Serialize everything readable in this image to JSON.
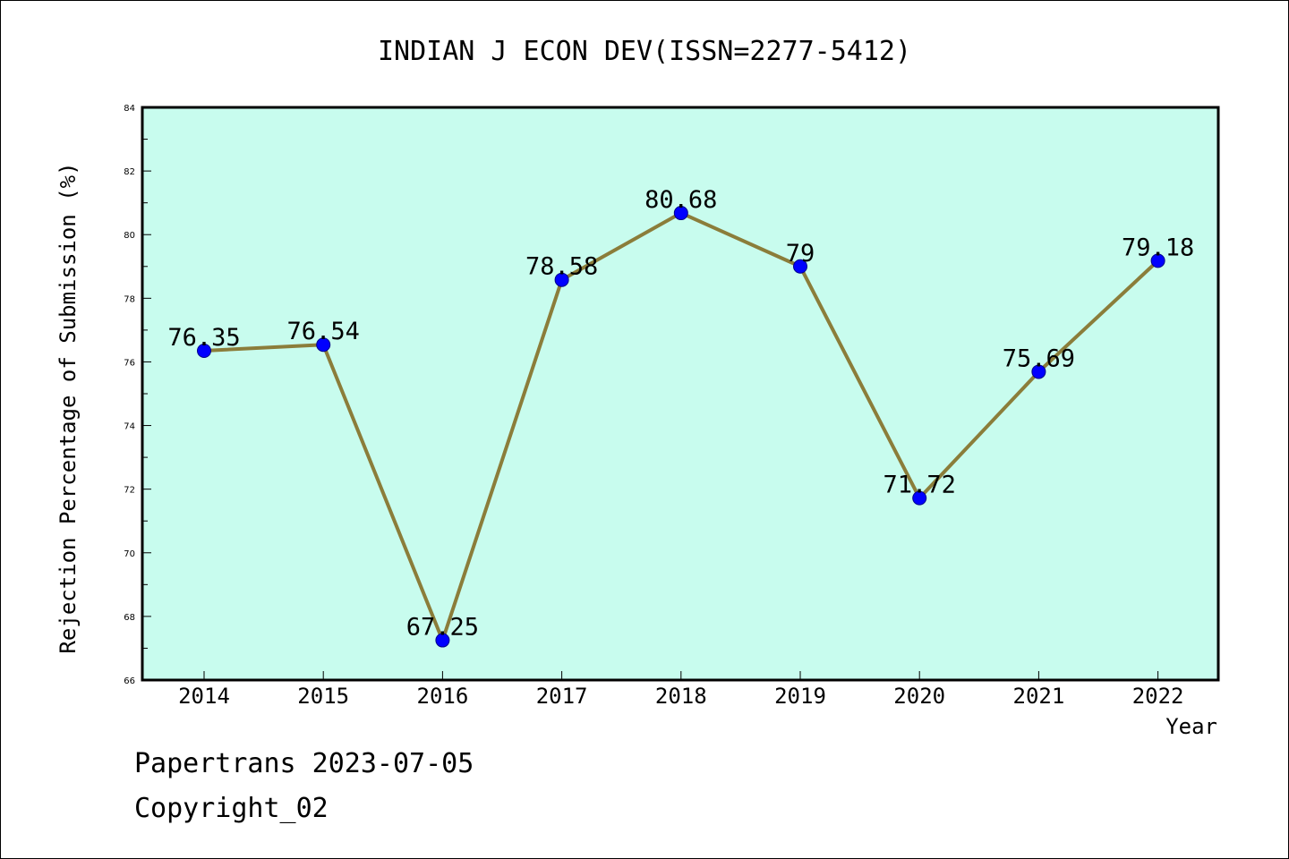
{
  "chart_data": {
    "type": "line",
    "title": "INDIAN J ECON DEV(ISSN=2277-5412)",
    "xlabel": "Year",
    "ylabel": "Rejection Percentage of Submission (%)",
    "categories": [
      "2014",
      "2015",
      "2016",
      "2017",
      "2018",
      "2019",
      "2020",
      "2021",
      "2022"
    ],
    "series": [
      {
        "values": [
          76.35,
          76.54,
          67.25,
          78.58,
          80.68,
          79,
          71.72,
          75.69,
          79.18
        ],
        "data_labels": [
          "76.35",
          "76.54",
          "67.25",
          "78.58",
          "80.68",
          "79",
          "71.72",
          "75.69",
          "79.18"
        ]
      }
    ],
    "ylim": [
      66,
      84
    ],
    "yticks": [
      "66",
      "68",
      "70",
      "72",
      "74",
      "76",
      "78",
      "80",
      "82",
      "84"
    ],
    "grid": false,
    "legend": "none",
    "colors": {
      "plot_background": "#c8fcee",
      "line": "#8b7d3a",
      "marker": "#0000ff",
      "marker_edge": "#00008b",
      "axes": "#000000"
    }
  },
  "footer": {
    "line1": "Papertrans 2023-07-05",
    "line2": "Copyright_02"
  }
}
